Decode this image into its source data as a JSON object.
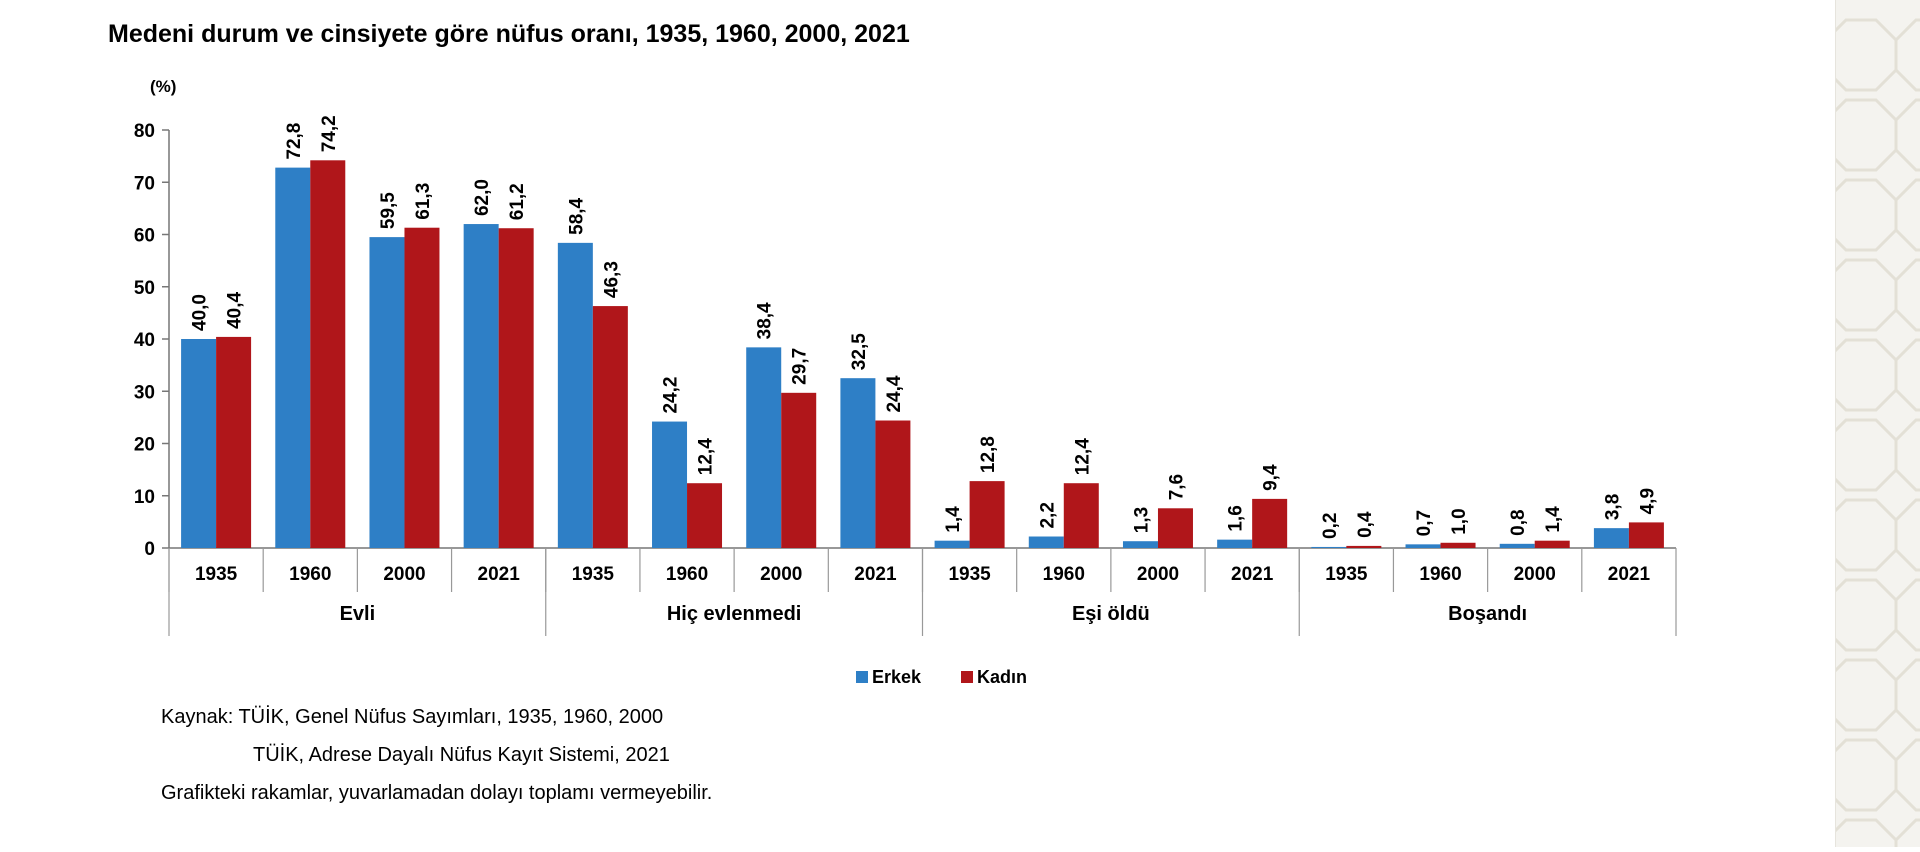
{
  "title": "Medeni durum ve cinsiyete göre nüfus oranı, 1935, 1960, 2000, 2021",
  "colors": {
    "erkek": "#2e7fc6",
    "kadin": "#b0161a",
    "background": "#ffffff",
    "side_pattern": "#f4f3ef"
  },
  "chart_data": {
    "type": "bar",
    "unit_label": "(%)",
    "ylim": [
      0,
      80
    ],
    "yticks": [
      0,
      10,
      20,
      30,
      40,
      50,
      60,
      70,
      80
    ],
    "grid": false,
    "legend_position": "bottom",
    "groups": [
      {
        "name": "Evli",
        "years": [
          "1935",
          "1960",
          "2000",
          "2021"
        ],
        "erkek": [
          40.0,
          72.8,
          59.5,
          62.0
        ],
        "kadin": [
          40.4,
          74.2,
          61.3,
          61.2
        ],
        "erkek_labels": [
          "40,0",
          "72,8",
          "59,5",
          "62,0"
        ],
        "kadin_labels": [
          "40,4",
          "74,2",
          "61,3",
          "61,2"
        ]
      },
      {
        "name": "Hiç evlenmedi",
        "years": [
          "1935",
          "1960",
          "2000",
          "2021"
        ],
        "erkek": [
          58.4,
          24.2,
          38.4,
          32.5
        ],
        "kadin": [
          46.3,
          12.4,
          29.7,
          24.4
        ],
        "erkek_labels": [
          "58,4",
          "24,2",
          "38,4",
          "32,5"
        ],
        "kadin_labels": [
          "46,3",
          "12,4",
          "29,7",
          "24,4"
        ]
      },
      {
        "name": "Eşi öldü",
        "years": [
          "1935",
          "1960",
          "2000",
          "2021"
        ],
        "erkek": [
          1.4,
          2.2,
          1.3,
          1.6
        ],
        "kadin": [
          12.8,
          12.4,
          7.6,
          9.4
        ],
        "erkek_labels": [
          "1,4",
          "2,2",
          "1,3",
          "1,6"
        ],
        "kadin_labels": [
          "12,8",
          "12,4",
          "7,6",
          "9,4"
        ]
      },
      {
        "name": "Boşandı",
        "years": [
          "1935",
          "1960",
          "2000",
          "2021"
        ],
        "erkek": [
          0.2,
          0.7,
          0.8,
          3.8
        ],
        "kadin": [
          0.4,
          1.0,
          1.4,
          4.9
        ],
        "erkek_labels": [
          "0,2",
          "0,7",
          "0,8",
          "3,8"
        ],
        "kadin_labels": [
          "0,4",
          "1,0",
          "1,4",
          "4,9"
        ]
      }
    ],
    "series": [
      {
        "name": "Erkek",
        "key": "erkek"
      },
      {
        "name": "Kadın",
        "key": "kadin"
      }
    ]
  },
  "source": {
    "line1": "Kaynak: TÜİK, Genel Nüfus Sayımları, 1935, 1960, 2000",
    "line2": "TÜİK, Adrese Dayalı Nüfus Kayıt Sistemi, 2021",
    "line3": "Grafikteki rakamlar, yuvarlamadan dolayı toplamı vermeyebilir."
  }
}
